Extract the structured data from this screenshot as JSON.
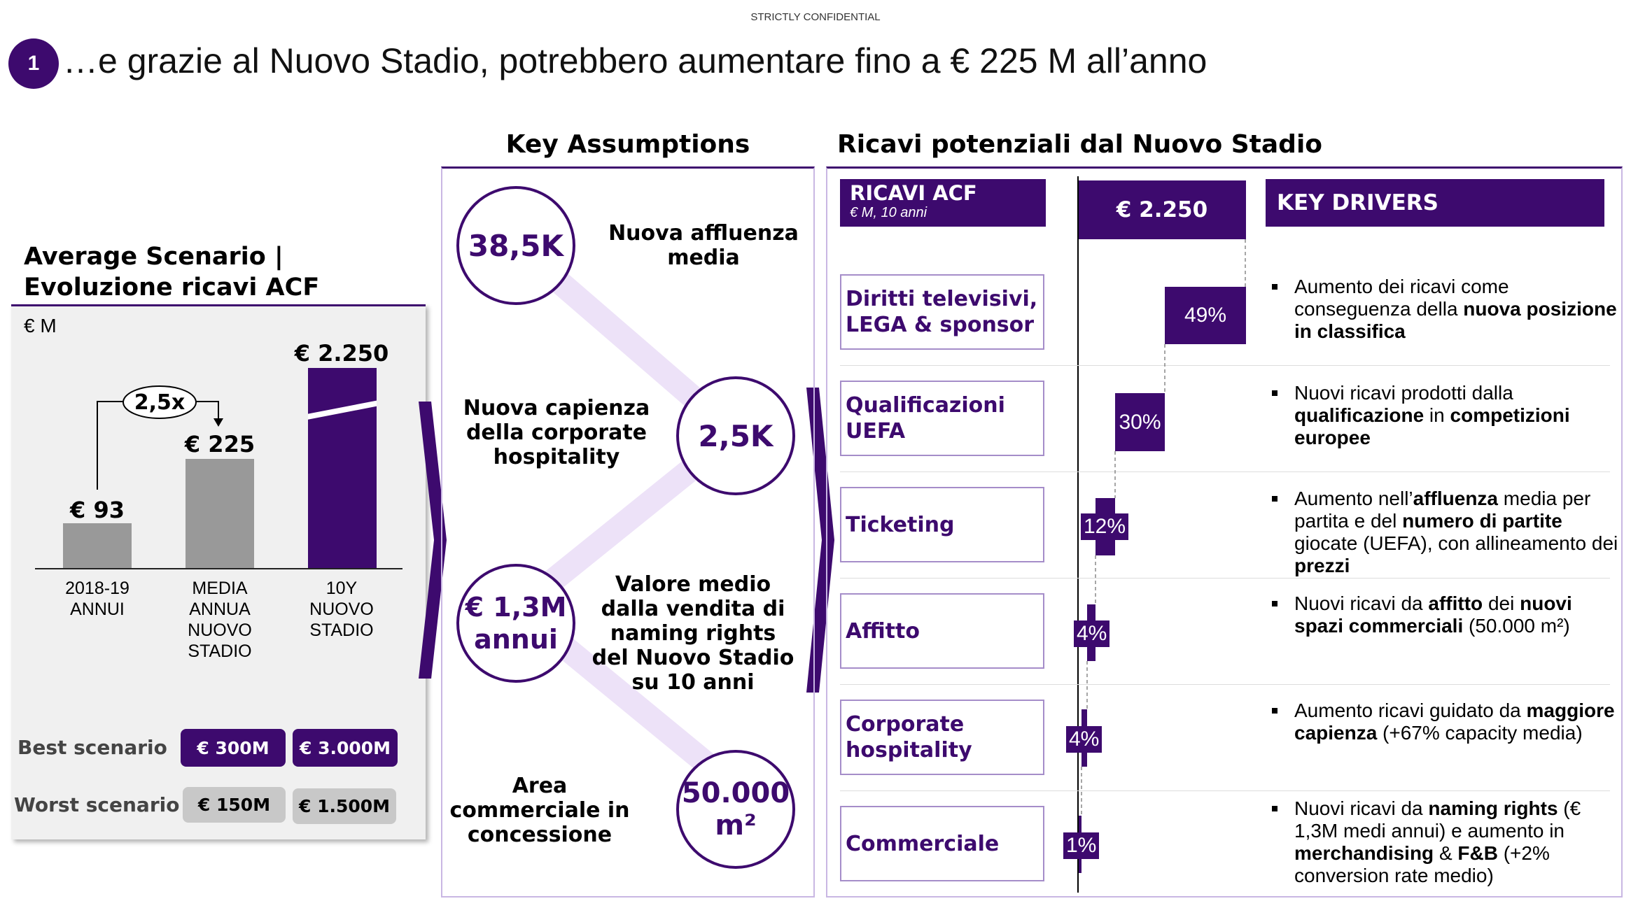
{
  "header": {
    "confidential": "STRICTLY CONFIDENTIAL",
    "badge": "1",
    "title": "…e grazie al Nuovo Stadio, potrebbero aumentare fino a € 225 M all’anno"
  },
  "left": {
    "heading_line1": "Average Scenario |",
    "heading_line2": "Evoluzione ricavi ACF",
    "unit": "€ M",
    "growth_label": "2,5x",
    "bars": [
      {
        "value": "€ 93",
        "label_lines": [
          "2018-19",
          "ANNUI"
        ]
      },
      {
        "value": "€ 225",
        "label_lines": [
          "MEDIA",
          "ANNUA",
          "NUOVO",
          "STADIO"
        ]
      },
      {
        "value": "€ 2.250",
        "label_lines": [
          "10Y",
          "NUOVO",
          "STADIO"
        ]
      }
    ],
    "scenarios": {
      "best_label": "Best scenario",
      "best_values": [
        "€ 300M",
        "€ 3.000M"
      ],
      "worst_label": "Worst scenario",
      "worst_values": [
        "€ 150M",
        "€ 1.500M"
      ]
    }
  },
  "assumptions": {
    "title": "Key Assumptions",
    "items": [
      {
        "circle": "38,5K",
        "text_lines": [
          "Nuova affluenza",
          "media"
        ]
      },
      {
        "circle": "2,5K",
        "text_lines": [
          "Nuova capienza",
          "della corporate",
          "hospitality"
        ]
      },
      {
        "circle_lines": [
          "€ 1,3M",
          "annui"
        ],
        "text_lines": [
          "Valore medio",
          "dalla vendita di",
          "naming rights",
          "del Nuovo Stadio",
          "su 10 anni"
        ]
      },
      {
        "circle_lines": [
          "50.000",
          "m²"
        ],
        "text_lines": [
          "Area",
          "commerciale in",
          "concessione"
        ]
      }
    ]
  },
  "revenues": {
    "title": "Ricavi potenziali dal Nuovo Stadio",
    "acf_title": "RICAVI ACF",
    "acf_subtitle": "€ M, 10 anni",
    "total": "€ 2.250",
    "drivers_title": "KEY DRIVERS",
    "categories": [
      {
        "label_lines": [
          "Diritti televisivi,",
          "LEGA & sponsor"
        ],
        "pct": "49%"
      },
      {
        "label_lines": [
          "Qualificazioni",
          "UEFA"
        ],
        "pct": "30%"
      },
      {
        "label_lines": [
          "Ticketing"
        ],
        "pct": "12%"
      },
      {
        "label_lines": [
          "Affitto"
        ],
        "pct": "4%"
      },
      {
        "label_lines": [
          "Corporate",
          "hospitality"
        ],
        "pct": "4%"
      },
      {
        "label_lines": [
          "Commerciale"
        ],
        "pct": "1%"
      }
    ],
    "drivers": [
      {
        "t1": "Aumento dei ricavi come conseguenza della ",
        "b1": "nuova posizione in classifica",
        "t2": "",
        "b2": "",
        "t3": "",
        "b3": "",
        "t4": ""
      },
      {
        "t1": "Nuovi ricavi prodotti dalla ",
        "b1": "qualificazione",
        "t2": " in ",
        "b2": "competizioni europee",
        "t3": "",
        "b3": "",
        "t4": ""
      },
      {
        "t1": "Aumento nell’",
        "b1": "affluenza",
        "t2": " media per partita e del ",
        "b2": "numero di partite",
        "t3": " giocate (UEFA), con allineamento dei ",
        "b3": "prezzi",
        "t4": ""
      },
      {
        "t1": "Nuovi ricavi da ",
        "b1": "affitto",
        "t2": " dei ",
        "b2": "nuovi spazi commerciali",
        "t3": " (50.000 m²)",
        "b3": "",
        "t4": ""
      },
      {
        "t1": "Aumento ricavi guidato da ",
        "b1": "maggiore capienza",
        "t2": " (+67% capacity media)",
        "b2": "",
        "t3": "",
        "b3": "",
        "t4": ""
      },
      {
        "t1": "Nuovi ricavi da ",
        "b1": "naming rights",
        "t2": " (€ 1,3M medi annui) e aumento in ",
        "b2": "merchandising",
        "t3": " & ",
        "b3": "F&B",
        "t4": " (+2% conversion rate medio)"
      }
    ]
  },
  "colors": {
    "accent": "#3d0a6e",
    "light_accent": "#ede2f8",
    "gray_bar": "#999999"
  }
}
